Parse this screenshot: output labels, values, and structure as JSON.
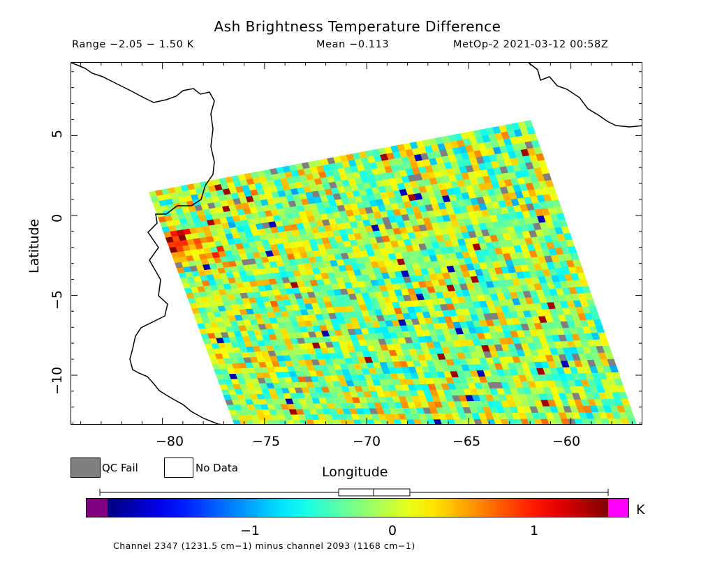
{
  "title": "Ash Brightness Temperature Difference",
  "subtitle": {
    "range": "Range −2.05 − 1.50 K",
    "mean": "Mean −0.113",
    "satellite_time": "MetOp-2 2021-03-12 00:58Z"
  },
  "axes": {
    "xlabel": "Longitude",
    "ylabel": "Latitude",
    "x_ticks": [
      "−80",
      "−75",
      "−70",
      "−65",
      "−60"
    ],
    "y_ticks": [
      "5",
      "0",
      "−5",
      "−10"
    ],
    "x_range": [
      -84.5,
      -56.5
    ],
    "y_range": [
      -13.1,
      9.6
    ]
  },
  "legend": {
    "qc_fail": "QC Fail",
    "no_data": "No Data",
    "qc_fail_color": "#7f7f7f",
    "no_data_color": "#ffffff"
  },
  "colorbar": {
    "ticks": [
      "−1",
      "0",
      "1"
    ],
    "tick_values": [
      -1,
      0,
      1
    ],
    "unit": "K",
    "min": -2.05,
    "max": 1.5,
    "under_color": "#800080",
    "over_color": "#ff00ff",
    "caption": "Channel 2347 (1231.5 cm−1) minus channel 2093 (1168 cm−1)"
  },
  "map": {
    "swath_corners_lonlat": [
      [
        -80.7,
        1.5
      ],
      [
        -62.0,
        6.0
      ],
      [
        -56.8,
        -13.1
      ],
      [
        -76.5,
        -13.1
      ]
    ],
    "hotspot_region": "Ecuador/Peru coast",
    "colormap": "jet"
  }
}
